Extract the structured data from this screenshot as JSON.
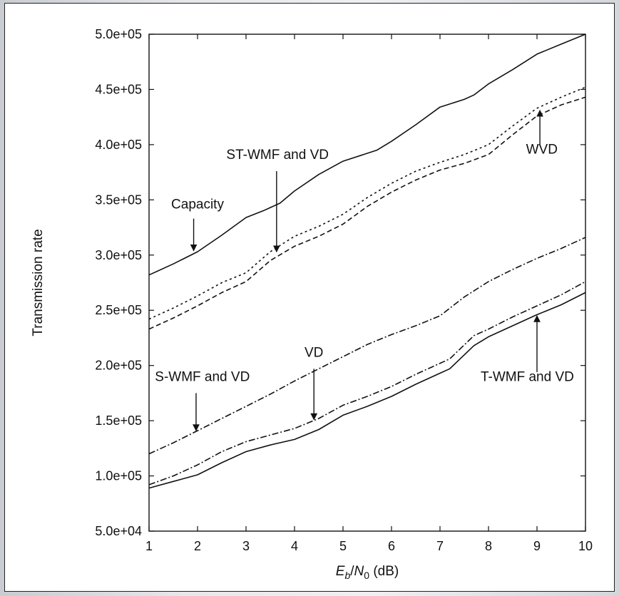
{
  "chart_data": {
    "type": "line",
    "xlabel": "E_b/N_0 (dB)",
    "xlabel_parts": {
      "E": "E",
      "b": "b",
      "slash": "/",
      "N": "N",
      "zero": "0",
      "unit": " (dB)"
    },
    "ylabel": "Transmission rate",
    "xlim": [
      1,
      10
    ],
    "ylim": [
      50000,
      500000
    ],
    "x_ticks": [
      1,
      2,
      3,
      4,
      5,
      6,
      7,
      8,
      9,
      10
    ],
    "x_tick_labels": [
      "1",
      "2",
      "3",
      "4",
      "5",
      "6",
      "7",
      "8",
      "9",
      "10"
    ],
    "y_ticks": [
      50000,
      100000,
      150000,
      200000,
      250000,
      300000,
      350000,
      400000,
      450000,
      500000
    ],
    "y_tick_labels": [
      "5.0e+04",
      "1.0e+05",
      "1.5e+05",
      "2.0e+05",
      "2.5e+05",
      "3.0e+05",
      "3.5e+05",
      "4.0e+05",
      "4.5e+05",
      "5.0e+05"
    ],
    "grid": false,
    "series": [
      {
        "key": "capacity",
        "dash": "solid",
        "color": "#111111",
        "x": [
          1,
          1.5,
          2,
          2.5,
          3,
          3.35,
          3.7,
          4,
          4.5,
          5,
          5.7,
          6,
          6.5,
          7,
          7.5,
          7.7,
          8,
          8.5,
          9,
          9.5,
          10
        ],
        "y": [
          282000,
          292000,
          303000,
          318000,
          334000,
          340000,
          347000,
          358000,
          373000,
          385000,
          395000,
          403000,
          418000,
          434000,
          441000,
          445000,
          455000,
          468000,
          482000,
          491000,
          500000
        ]
      },
      {
        "key": "st_wmf_vd",
        "dash": "dotted",
        "color": "#111111",
        "x": [
          1,
          1.5,
          2,
          2.5,
          3,
          3.5,
          4,
          4.5,
          5,
          5.5,
          6,
          6.5,
          7,
          7.5,
          8,
          8.5,
          9,
          9.5,
          10
        ],
        "y": [
          242000,
          252000,
          263000,
          275000,
          284000,
          303000,
          317000,
          326000,
          337000,
          352000,
          365000,
          376000,
          384000,
          391000,
          400000,
          417000,
          433000,
          443000,
          452000
        ]
      },
      {
        "key": "wvd",
        "dash": "dashed",
        "color": "#111111",
        "x": [
          1,
          1.5,
          2,
          2.5,
          3,
          3.5,
          4,
          4.5,
          5,
          5.5,
          6,
          6.5,
          7,
          7.5,
          8,
          8.5,
          9,
          9.5,
          10
        ],
        "y": [
          233000,
          243000,
          254000,
          266000,
          276000,
          295000,
          308000,
          317000,
          328000,
          344000,
          357000,
          368000,
          377000,
          383000,
          391000,
          409000,
          426000,
          436000,
          443000
        ]
      },
      {
        "key": "s_wmf_vd",
        "dash": "dashdot",
        "color": "#111111",
        "x": [
          1,
          1.5,
          2,
          2.5,
          3,
          3.5,
          4,
          4.5,
          5,
          5.5,
          6,
          6.5,
          7,
          7.5,
          8,
          8.5,
          9,
          9.5,
          10
        ],
        "y": [
          120000,
          130000,
          141000,
          152000,
          163000,
          174000,
          186000,
          197000,
          208000,
          219000,
          228000,
          236000,
          245000,
          262000,
          276000,
          287000,
          297000,
          306000,
          316000
        ]
      },
      {
        "key": "vd",
        "dash": "dashdot",
        "color": "#111111",
        "x": [
          1,
          1.5,
          2,
          2.5,
          3,
          3.5,
          4,
          4.5,
          5,
          5.5,
          6,
          6.5,
          7,
          7.2,
          7.7,
          8,
          8.5,
          9,
          9.5,
          10
        ],
        "y": [
          92000,
          100000,
          110000,
          122000,
          131000,
          137000,
          143000,
          152000,
          164000,
          172000,
          181000,
          192000,
          202000,
          206000,
          227000,
          233000,
          244000,
          254000,
          264000,
          276000
        ]
      },
      {
        "key": "t_wmf_vd",
        "dash": "solid",
        "color": "#111111",
        "x": [
          1,
          1.5,
          2,
          2.5,
          3,
          3.5,
          4,
          4.5,
          5,
          5.5,
          6,
          6.5,
          7,
          7.2,
          7.7,
          8,
          8.5,
          9,
          9.5,
          10
        ],
        "y": [
          89000,
          95000,
          101000,
          112000,
          122000,
          128000,
          133000,
          142000,
          155000,
          163000,
          172000,
          183000,
          193000,
          197000,
          218000,
          226000,
          236000,
          246000,
          255000,
          266000
        ]
      }
    ],
    "annotations": [
      {
        "key": "capacity",
        "text": "Capacity",
        "label_x": 2.0,
        "label_y": 342000,
        "anchor": "middle",
        "arrow_from": [
          1.92,
          333000
        ],
        "arrow_to": [
          1.92,
          304000
        ]
      },
      {
        "key": "st_wmf_vd",
        "text": "ST-WMF and VD",
        "label_x": 3.65,
        "label_y": 387000,
        "anchor": "middle",
        "arrow_from": [
          3.63,
          376000
        ],
        "arrow_to": [
          3.63,
          303000
        ]
      },
      {
        "key": "wvd",
        "text": "WVD",
        "label_x": 9.1,
        "label_y": 392000,
        "anchor": "middle",
        "arrow_from": [
          9.06,
          400000
        ],
        "arrow_to": [
          9.06,
          431000
        ]
      },
      {
        "key": "vd",
        "text": "VD",
        "label_x": 4.4,
        "label_y": 208000,
        "anchor": "middle",
        "arrow_from": [
          4.4,
          197000
        ],
        "arrow_to": [
          4.4,
          151000
        ]
      },
      {
        "key": "s_wmf_vd",
        "text": "S-WMF and VD",
        "label_x": 2.1,
        "label_y": 186000,
        "anchor": "middle",
        "arrow_from": [
          1.97,
          175000
        ],
        "arrow_to": [
          1.97,
          141000
        ]
      },
      {
        "key": "t_wmf_vd",
        "text": "T-WMF and VD",
        "label_x": 8.8,
        "label_y": 186000,
        "anchor": "middle",
        "arrow_from": [
          9.0,
          194000
        ],
        "arrow_to": [
          9.0,
          245000
        ]
      }
    ]
  }
}
